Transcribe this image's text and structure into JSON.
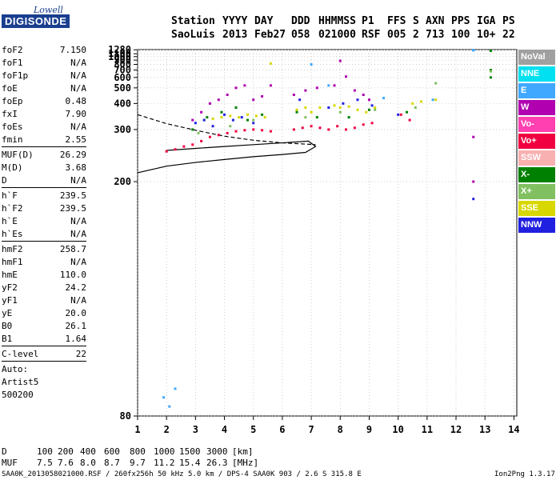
{
  "logo": {
    "line1": "Lowell",
    "line2": "DIGISONDE"
  },
  "header": {
    "labels": [
      "Station",
      "YYYY",
      "DAY",
      "DDD",
      "HHMMSS",
      "P1",
      "FFS",
      "S",
      "AXN",
      "PPS",
      "IGA",
      "PS"
    ],
    "values": [
      "SaoLuis",
      "2013",
      "Feb27",
      "058",
      "021000",
      "RSF",
      "005",
      "2",
      "713",
      "100",
      "10+",
      "22"
    ]
  },
  "params": [
    {
      "group": [
        {
          "name": "foF2",
          "value": "7.150"
        },
        {
          "name": "foF1",
          "value": "N/A"
        },
        {
          "name": "foF1p",
          "value": "N/A"
        },
        {
          "name": "foE",
          "value": "N/A"
        },
        {
          "name": "foEp",
          "value": "0.48"
        },
        {
          "name": "fxI",
          "value": "7.90"
        },
        {
          "name": "foEs",
          "value": "N/A"
        },
        {
          "name": "fmin",
          "value": "2.55"
        }
      ]
    },
    {
      "group": [
        {
          "name": "MUF(D)",
          "value": "26.29"
        },
        {
          "name": "M(D)",
          "value": "3.68"
        },
        {
          "name": "D",
          "value": "N/A"
        }
      ]
    },
    {
      "group": [
        {
          "name": "h`F",
          "value": "239.5"
        },
        {
          "name": "h`F2",
          "value": "239.5"
        },
        {
          "name": "h`E",
          "value": "N/A"
        },
        {
          "name": "h`Es",
          "value": "N/A"
        }
      ]
    },
    {
      "group": [
        {
          "name": "hmF2",
          "value": "258.7"
        },
        {
          "name": "hmF1",
          "value": "N/A"
        },
        {
          "name": "hmE",
          "value": "110.0"
        },
        {
          "name": "yF2",
          "value": "24.2"
        },
        {
          "name": "yF1",
          "value": "N/A"
        },
        {
          "name": "yE",
          "value": "20.0"
        },
        {
          "name": "B0",
          "value": "26.1"
        },
        {
          "name": "B1",
          "value": "1.64"
        }
      ]
    },
    {
      "group": [
        {
          "name": "C-level",
          "value": "22"
        }
      ]
    }
  ],
  "auto": [
    "Auto:",
    "Artist5",
    "500200"
  ],
  "legend": [
    {
      "label": "NoVal",
      "color": "#a0a0a0"
    },
    {
      "label": "NNE",
      "color": "#00e0f0"
    },
    {
      "label": "E",
      "color": "#40a8ff"
    },
    {
      "label": "W",
      "color": "#b000b0"
    },
    {
      "label": "Vo-",
      "color": "#ff40b0"
    },
    {
      "label": "Vo+",
      "color": "#f00040"
    },
    {
      "label": "SSW",
      "color": "#f8b0b0"
    },
    {
      "label": "X-",
      "color": "#008000"
    },
    {
      "label": "X+",
      "color": "#80c060"
    },
    {
      "label": "SSE",
      "color": "#d8d800"
    },
    {
      "label": "NNW",
      "color": "#2020e0"
    }
  ],
  "footer": {
    "d_label": "D",
    "d_values": [
      "100",
      "200",
      "400",
      "600",
      "800",
      "1000",
      "1500",
      "3000"
    ],
    "d_unit": "[km]",
    "muf_label": "MUF",
    "muf_values": [
      "7.5",
      "7.6",
      "8.0",
      "8.7",
      "9.7",
      "11.2",
      "15.4",
      "26.3"
    ],
    "muf_unit": "[MHz]",
    "info": "SAA0K_2013058021000.RSF / 260fx256h 50 kHz 5.0 km / DPS-4 SAA0K 903 / 2.6 S 315.8 E",
    "version": "Ion2Png 1.3.17"
  },
  "chart_data": {
    "type": "scatter",
    "x_ticks": [
      1,
      2,
      3,
      4,
      5,
      6,
      7,
      8,
      9,
      10,
      11,
      12,
      13,
      14
    ],
    "y_ticks": [
      80,
      200,
      300,
      400,
      500,
      600,
      700,
      800,
      900,
      1000,
      1100,
      1280
    ],
    "xlim": [
      1,
      14.1
    ],
    "ylim": [
      80,
      1290
    ],
    "y_scale": "reciprocal",
    "grid": true,
    "legend_placement": "right",
    "series": [
      {
        "color": "#f00040",
        "x": [
          2.0,
          2.3,
          2.6,
          2.9,
          3.2,
          3.5,
          3.8,
          4.1,
          4.4,
          4.7,
          5.0,
          5.3,
          5.6,
          6.4,
          6.7,
          7.0,
          7.3,
          7.6,
          7.9,
          8.2,
          8.5,
          8.8,
          9.1,
          10.1,
          10.4
        ],
        "y": [
          248,
          252,
          258,
          262,
          270,
          280,
          285,
          290,
          295,
          298,
          300,
          298,
          295,
          300,
          305,
          310,
          305,
          300,
          310,
          300,
          305,
          315,
          320,
          350,
          330
        ]
      },
      {
        "color": "#b000b0",
        "x": [
          2.9,
          3.2,
          3.5,
          3.8,
          4.1,
          4.4,
          4.7,
          5.0,
          5.3,
          5.6,
          6.4,
          6.8,
          7.2,
          7.8,
          8.0,
          8.2,
          8.5,
          8.8,
          9.0,
          12.6,
          12.6
        ],
        "y": [
          330,
          360,
          400,
          420,
          450,
          500,
          520,
          420,
          440,
          520,
          450,
          480,
          500,
          520,
          880,
          610,
          480,
          450,
          420,
          280,
          200
        ]
      },
      {
        "color": "#d8d800",
        "x": [
          3.3,
          3.6,
          3.9,
          4.2,
          4.5,
          4.8,
          5.1,
          5.4,
          5.6,
          6.5,
          6.8,
          7.0,
          7.3,
          7.8,
          8.0,
          8.3,
          8.6,
          8.9,
          9.2,
          10.5,
          10.8,
          11.3
        ],
        "y": [
          330,
          335,
          340,
          345,
          340,
          350,
          345,
          340,
          820,
          370,
          380,
          360,
          380,
          390,
          380,
          385,
          370,
          360,
          380,
          400,
          410,
          420
        ]
      },
      {
        "color": "#2020e0",
        "x": [
          3.0,
          3.3,
          3.6,
          4.0,
          4.3,
          4.6,
          5.0,
          6.6,
          7.6,
          8.1,
          8.6,
          9.1,
          10.0,
          12.6
        ],
        "y": [
          320,
          330,
          310,
          350,
          330,
          340,
          320,
          420,
          380,
          400,
          420,
          390,
          350,
          180
        ]
      },
      {
        "color": "#008000",
        "x": [
          2.9,
          3.4,
          3.9,
          4.4,
          4.8,
          5.3,
          6.5,
          7.2,
          8.3,
          9.0,
          10.3,
          13.2,
          13.2,
          13.2
        ],
        "y": [
          300,
          340,
          360,
          380,
          330,
          350,
          360,
          340,
          340,
          370,
          360,
          1230,
          700,
          600
        ]
      },
      {
        "color": "#40a8ff",
        "x": [
          1.9,
          2.1,
          2.3,
          7.0,
          7.6,
          9.5,
          11.2,
          12.6,
          12.6
        ],
        "y": [
          84,
          82,
          86,
          800,
          520,
          430,
          420,
          1270,
          1250
        ]
      },
      {
        "color": "#80c060",
        "x": [
          3.1,
          4.2,
          5.0,
          6.8,
          8.0,
          9.2,
          10.6,
          11.3,
          13.2
        ],
        "y": [
          290,
          310,
          330,
          340,
          360,
          370,
          380,
          540,
          680
        ]
      }
    ],
    "virtual_height_curves": [
      {
        "style": "solid",
        "x": [
          1.0,
          2.0,
          3.0,
          4.0,
          5.0,
          6.0,
          6.8,
          7.15,
          6.9,
          6.0,
          5.0,
          4.0,
          3.0,
          2.0
        ],
        "y": [
          212,
          222,
          228,
          233,
          238,
          242,
          246,
          258,
          270,
          266,
          262,
          258,
          254,
          250
        ]
      },
      {
        "style": "dashed",
        "x": [
          1.0,
          2.0,
          3.0,
          4.0,
          5.0,
          6.0,
          7.15
        ],
        "y": [
          350,
          318,
          298,
          282,
          272,
          266,
          262
        ]
      }
    ]
  }
}
